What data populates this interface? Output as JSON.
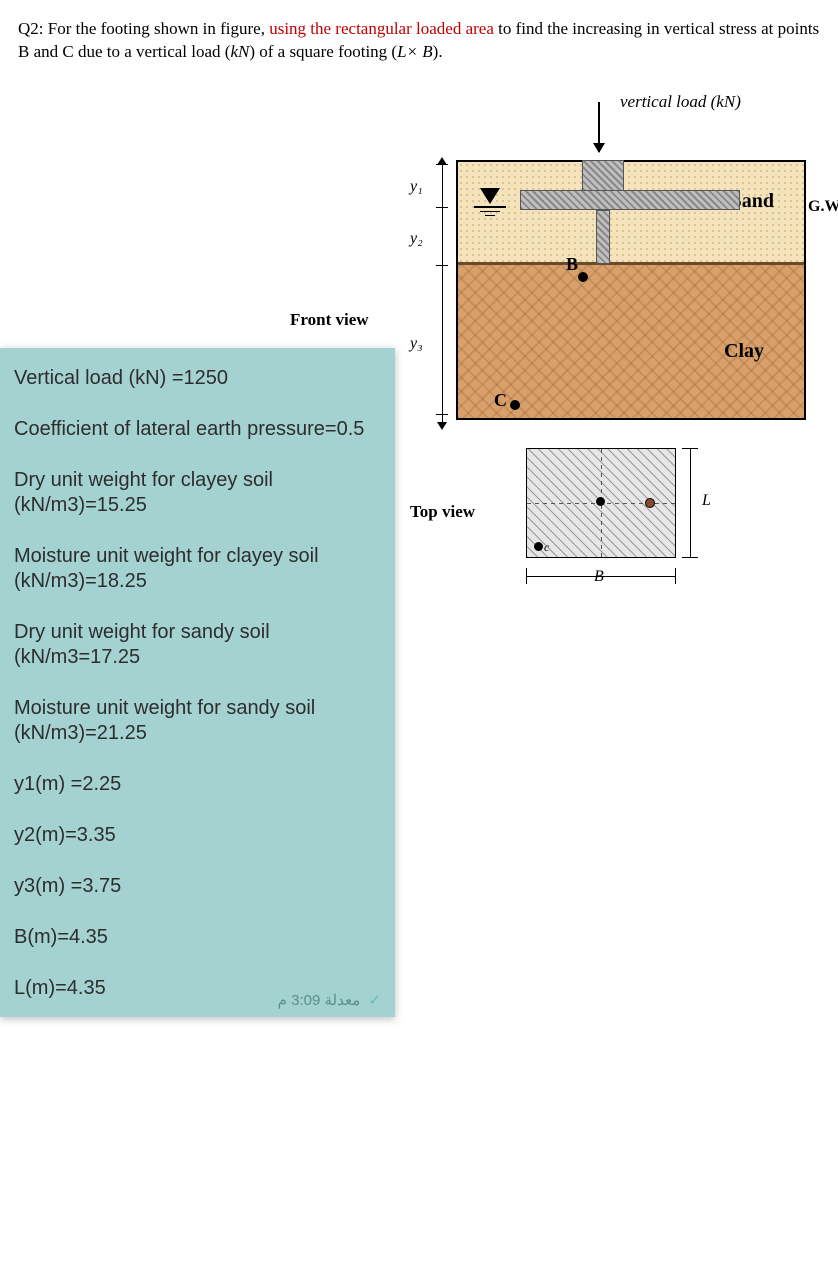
{
  "question": {
    "prefix": "Q2: For the footing shown in figure, ",
    "red": "using the rectangular loaded area",
    "mid": " to find the increasing in vertical stress at points B and C due to a vertical load (",
    "kN": "kN",
    "mid2": ") of a square footing (",
    "LxB": "L× B",
    "suffix": ")."
  },
  "labels": {
    "vertical_load": "vertical load (kN)",
    "sand": "Sand",
    "clay": "Clay",
    "gwt": "G.W.T",
    "front_view": "Front view",
    "top_view": "Top view",
    "y1": "y₁",
    "y2": "y₂",
    "y3": "y₃",
    "B": "B",
    "L": "L",
    "ptB": "B",
    "ptC": "C",
    "tv_c": "c"
  },
  "panel": {
    "l1": "Vertical load (kN) =1250",
    "l2": "Coefficient of lateral earth pressure=0.5",
    "l3": "Dry unit weight for clayey soil (kN/m3)=15.25",
    "l4": "Moisture unit weight for clayey soil (kN/m3)=18.25",
    "l5": "Dry unit weight for sandy soil (kN/m3=17.25",
    "l6": "Moisture unit weight for sandy soil (kN/m3)=21.25",
    "l7": "y1(m) =2.25",
    "l8": "y2(m)=3.35",
    "l9": "y3(m) =3.75",
    "l10": "B(m)=4.35",
    "l11": "L(m)=4.35",
    "stamp": "معدلة 3:09 م"
  },
  "style": {
    "panel_bg": "#a3d2d0",
    "sand_bg": "#f5e3bc",
    "clay_bg": "#d9a06b",
    "red": "#c00000"
  }
}
